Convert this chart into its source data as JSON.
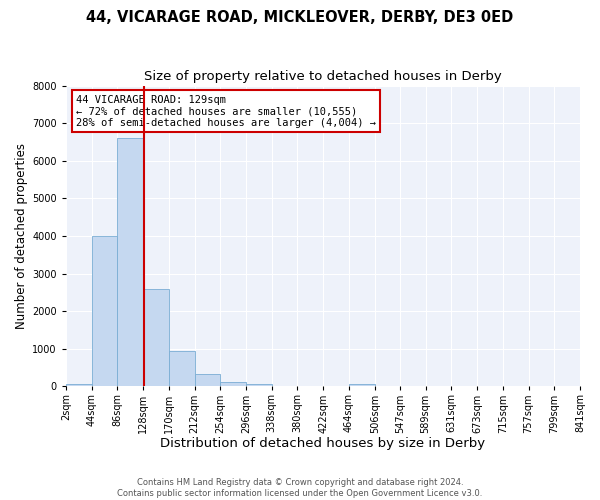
{
  "title1": "44, VICARAGE ROAD, MICKLEOVER, DERBY, DE3 0ED",
  "title2": "Size of property relative to detached houses in Derby",
  "xlabel": "Distribution of detached houses by size in Derby",
  "ylabel": "Number of detached properties",
  "bin_edges": [
    2,
    44,
    86,
    128,
    170,
    212,
    254,
    296,
    338,
    380,
    422,
    464,
    506,
    547,
    589,
    631,
    673,
    715,
    757,
    799,
    841
  ],
  "bin_counts": [
    75,
    4000,
    6600,
    2600,
    950,
    325,
    120,
    75,
    0,
    0,
    0,
    75,
    0,
    0,
    0,
    0,
    0,
    0,
    0,
    0
  ],
  "bar_color": "#c5d8f0",
  "bar_edgecolor": "#7aadd4",
  "vline_x": 129,
  "vline_color": "#cc0000",
  "ylim": [
    0,
    8000
  ],
  "yticks": [
    0,
    1000,
    2000,
    3000,
    4000,
    5000,
    6000,
    7000,
    8000
  ],
  "annotation_title": "44 VICARAGE ROAD: 129sqm",
  "annotation_line1": "← 72% of detached houses are smaller (10,555)",
  "annotation_line2": "28% of semi-detached houses are larger (4,004) →",
  "annotation_box_edgecolor": "#cc0000",
  "bg_color": "#eef2fa",
  "grid_color": "#ffffff",
  "footer1": "Contains HM Land Registry data © Crown copyright and database right 2024.",
  "footer2": "Contains public sector information licensed under the Open Government Licence v3.0.",
  "title1_fontsize": 10.5,
  "title2_fontsize": 9.5,
  "xlabel_fontsize": 9.5,
  "ylabel_fontsize": 8.5,
  "tick_fontsize": 7.0,
  "annot_fontsize": 7.5,
  "footer_fontsize": 6.0
}
